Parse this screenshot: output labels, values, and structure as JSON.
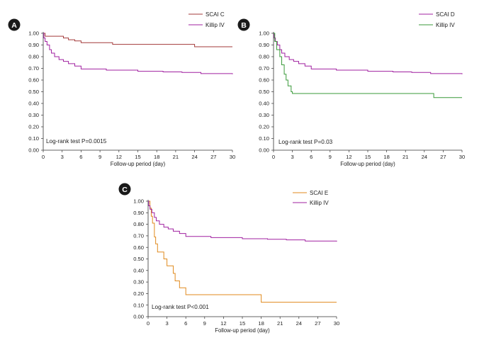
{
  "chart_data": [
    {
      "type": "line",
      "panel_label": "A",
      "xlabel": "Follow-up period (day)",
      "ylabel": "",
      "x_ticks": [
        0,
        3,
        6,
        9,
        12,
        15,
        18,
        21,
        24,
        27,
        30
      ],
      "y_ticks": [
        "0.00",
        "0.10",
        "0.20",
        "0.30",
        "0.40",
        "0.50",
        "0.60",
        "0.70",
        "0.80",
        "0.90",
        "1.00"
      ],
      "xlim": [
        0,
        30
      ],
      "ylim": [
        0,
        1
      ],
      "annotation": "Log-rank test P=0.0015",
      "legend_position": "top-right",
      "series": [
        {
          "name": "SCAI C",
          "color": "#a33a3a",
          "points": [
            [
              0,
              1.0
            ],
            [
              0.3,
              0.975
            ],
            [
              3.2,
              0.96
            ],
            [
              4,
              0.945
            ],
            [
              5,
              0.935
            ],
            [
              6,
              0.92
            ],
            [
              11,
              0.905
            ],
            [
              24,
              0.885
            ],
            [
              30,
              0.885
            ]
          ]
        },
        {
          "name": "Killip IV",
          "color": "#a020a0",
          "points": [
            [
              0,
              1.0
            ],
            [
              0.1,
              0.96
            ],
            [
              0.3,
              0.93
            ],
            [
              0.6,
              0.9
            ],
            [
              1,
              0.86
            ],
            [
              1.3,
              0.83
            ],
            [
              1.8,
              0.8
            ],
            [
              2.5,
              0.775
            ],
            [
              3.2,
              0.76
            ],
            [
              4,
              0.74
            ],
            [
              5,
              0.72
            ],
            [
              6,
              0.695
            ],
            [
              10,
              0.685
            ],
            [
              15,
              0.675
            ],
            [
              19,
              0.67
            ],
            [
              22,
              0.665
            ],
            [
              25,
              0.655
            ],
            [
              30,
              0.65
            ]
          ]
        }
      ]
    },
    {
      "type": "line",
      "panel_label": "B",
      "xlabel": "Follow-up period (day)",
      "ylabel": "",
      "x_ticks": [
        0,
        3,
        6,
        9,
        12,
        15,
        18,
        21,
        24,
        27,
        30
      ],
      "y_ticks": [
        "0.00",
        "0.10",
        "0.20",
        "0.30",
        "0.40",
        "0.50",
        "0.60",
        "0.70",
        "0.80",
        "0.90",
        "1.00"
      ],
      "xlim": [
        0,
        30
      ],
      "ylim": [
        0,
        1
      ],
      "annotation": "Log-rank test P=0.03",
      "legend_position": "top-right",
      "series": [
        {
          "name": "SCAI D",
          "color": "#a020a0",
          "points": [
            [
              0,
              1.0
            ],
            [
              0.1,
              0.96
            ],
            [
              0.3,
              0.93
            ],
            [
              0.6,
              0.9
            ],
            [
              1,
              0.86
            ],
            [
              1.3,
              0.83
            ],
            [
              1.8,
              0.8
            ],
            [
              2.5,
              0.775
            ],
            [
              3.2,
              0.76
            ],
            [
              4,
              0.74
            ],
            [
              5,
              0.72
            ],
            [
              6,
              0.695
            ],
            [
              10,
              0.685
            ],
            [
              15,
              0.675
            ],
            [
              19,
              0.67
            ],
            [
              22,
              0.665
            ],
            [
              25,
              0.655
            ],
            [
              30,
              0.65
            ]
          ]
        },
        {
          "name": "Killip IV",
          "color": "#3a9a3a",
          "points": [
            [
              0,
              1.0
            ],
            [
              0.2,
              0.93
            ],
            [
              0.5,
              0.86
            ],
            [
              1,
              0.8
            ],
            [
              1.3,
              0.73
            ],
            [
              1.7,
              0.65
            ],
            [
              2,
              0.6
            ],
            [
              2.3,
              0.55
            ],
            [
              2.8,
              0.5
            ],
            [
              3,
              0.485
            ],
            [
              25.5,
              0.485
            ],
            [
              25.5,
              0.45
            ],
            [
              30,
              0.45
            ]
          ]
        }
      ]
    },
    {
      "type": "line",
      "panel_label": "C",
      "xlabel": "Follow-up period (day)",
      "ylabel": "",
      "x_ticks": [
        0,
        3,
        6,
        9,
        12,
        15,
        18,
        21,
        24,
        27,
        30
      ],
      "y_ticks": [
        "0.00",
        "0.10",
        "0.20",
        "0.30",
        "0.40",
        "0.50",
        "0.60",
        "0.70",
        "0.80",
        "0.90",
        "1.00"
      ],
      "xlim": [
        0,
        30
      ],
      "ylim": [
        0,
        1
      ],
      "annotation": "Log-rank test P<0.001",
      "legend_position": "top-right",
      "series": [
        {
          "name": "SCAI E",
          "color": "#e08a1e",
          "points": [
            [
              0,
              1.0
            ],
            [
              0.3,
              0.94
            ],
            [
              0.5,
              0.87
            ],
            [
              0.7,
              0.81
            ],
            [
              1,
              0.69
            ],
            [
              1.2,
              0.63
            ],
            [
              1.5,
              0.56
            ],
            [
              2.5,
              0.5
            ],
            [
              3,
              0.44
            ],
            [
              4,
              0.375
            ],
            [
              4.3,
              0.31
            ],
            [
              5,
              0.25
            ],
            [
              6,
              0.19
            ],
            [
              18,
              0.19
            ],
            [
              18,
              0.125
            ],
            [
              30,
              0.125
            ]
          ]
        },
        {
          "name": "Killip IV",
          "color": "#a020a0",
          "points": [
            [
              0,
              1.0
            ],
            [
              0.1,
              0.96
            ],
            [
              0.3,
              0.93
            ],
            [
              0.6,
              0.9
            ],
            [
              1,
              0.86
            ],
            [
              1.3,
              0.83
            ],
            [
              1.8,
              0.8
            ],
            [
              2.5,
              0.775
            ],
            [
              3.2,
              0.76
            ],
            [
              4,
              0.74
            ],
            [
              5,
              0.72
            ],
            [
              6,
              0.695
            ],
            [
              10,
              0.685
            ],
            [
              15,
              0.675
            ],
            [
              19,
              0.67
            ],
            [
              22,
              0.665
            ],
            [
              25,
              0.655
            ],
            [
              30,
              0.65
            ]
          ]
        }
      ]
    }
  ]
}
